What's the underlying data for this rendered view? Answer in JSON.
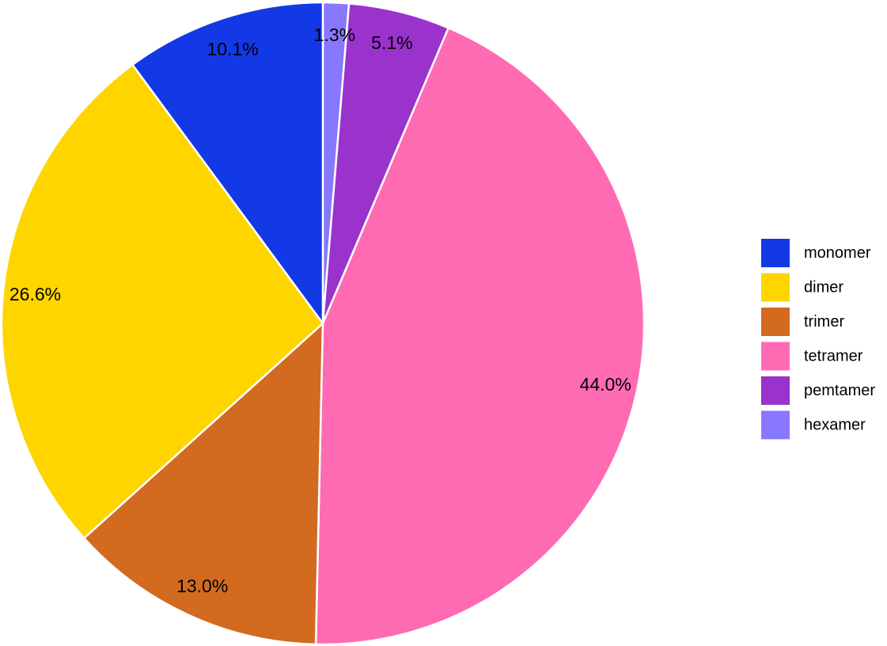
{
  "chart_data": {
    "type": "pie",
    "title": "",
    "legend_position": "right",
    "direction": "clockwise",
    "start": "top",
    "series": [
      {
        "name": "monomer",
        "value": 10.1,
        "label": "10.1%",
        "color": "#1339E6"
      },
      {
        "name": "dimer",
        "value": 26.6,
        "label": "26.6%",
        "color": "#FFD500"
      },
      {
        "name": "trimer",
        "value": 13.0,
        "label": "13.0%",
        "color": "#D26A20"
      },
      {
        "name": "tetramer",
        "value": 44.0,
        "label": "44.0%",
        "color": "#FF6BB3"
      },
      {
        "name": "pemtamer",
        "value": 5.1,
        "label": "5.1%",
        "color": "#9933CC"
      },
      {
        "name": "hexamer",
        "value": 1.3,
        "label": "1.3%",
        "color": "#8877FF"
      }
    ],
    "draw_order": [
      "hexamer",
      "pemtamer",
      "tetramer",
      "trimer",
      "dimer",
      "monomer"
    ]
  }
}
